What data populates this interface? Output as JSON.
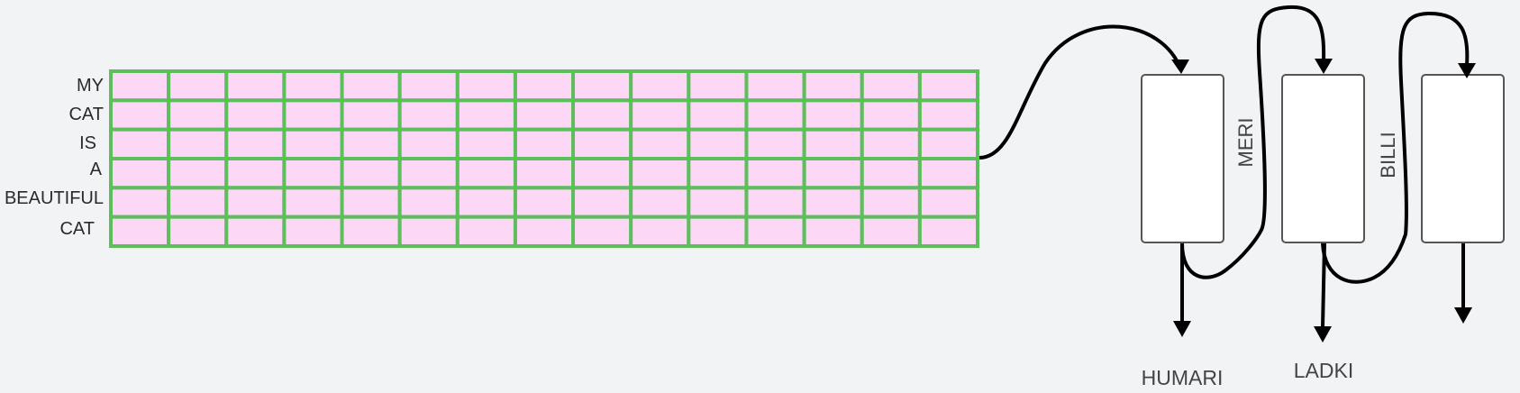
{
  "matrix": {
    "rows": [
      "MY",
      "CAT",
      "IS",
      "A",
      "BEAUTIFUL",
      "CAT"
    ],
    "column_count": 15,
    "cell_fill": "#fdd7f6",
    "grid_color": "#5cbf5c"
  },
  "boxes": [
    {
      "output_label": "HUMARI",
      "carry_label": "MERI"
    },
    {
      "output_label": "LADKI",
      "carry_label": "BILLI"
    },
    {
      "output_label": "",
      "carry_label": ""
    }
  ],
  "colors": {
    "background": "#f2f3f5",
    "arrow": "#000000",
    "box_border": "#555555",
    "box_fill": "#ffffff"
  }
}
